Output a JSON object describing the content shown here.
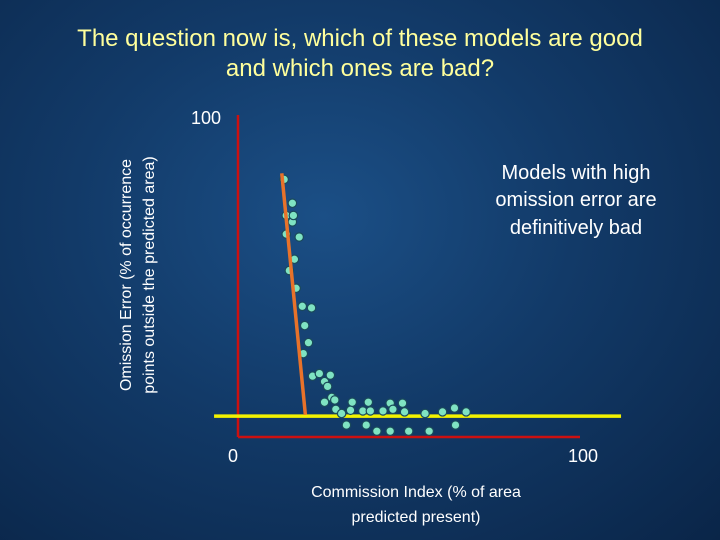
{
  "title_line1": "The question now is, which of these models are good",
  "title_line2": "and which ones are bad?",
  "annotation": [
    "Models with high",
    "omission error are",
    "definitively bad"
  ],
  "colors": {
    "title": "#ffff9c",
    "axes": "#cc1010",
    "points": "#7fe3c2",
    "point_outline": "#1a4a5a",
    "threshold": "#f2f200",
    "fit_line": "#e8722a"
  },
  "chart_data": {
    "type": "scatter",
    "title": "The question now is, which of these models are good and which ones are bad?",
    "xlabel": "Commission Index (% of area predicted present)",
    "ylabel": "Omission Error (% of occurrence points outside the predicted area)",
    "xlim": [
      0,
      100
    ],
    "ylim": [
      0,
      100
    ],
    "x_ticks": [
      "0",
      "100"
    ],
    "y_ticks": [
      "100"
    ],
    "grid": false,
    "threshold_line": {
      "y": 6.5,
      "x_range": [
        -7,
        112
      ]
    },
    "trend_line": {
      "points": [
        [
          12.8,
          81.9
        ],
        [
          19.7,
          6.9
        ]
      ]
    },
    "points": [
      [
        13.5,
        80
      ],
      [
        14.1,
        68.8
      ],
      [
        15.9,
        66.8
      ],
      [
        16.2,
        68.8
      ],
      [
        15.9,
        72.6
      ],
      [
        14.1,
        63
      ],
      [
        17.9,
        62.1
      ],
      [
        16.5,
        55.2
      ],
      [
        15,
        51.7
      ],
      [
        17,
        46.2
      ],
      [
        18.8,
        40.6
      ],
      [
        19.5,
        34.6
      ],
      [
        21.5,
        40.1
      ],
      [
        20.6,
        29.3
      ],
      [
        19.1,
        25.9
      ],
      [
        21.8,
        18.9
      ],
      [
        23.8,
        19.7
      ],
      [
        25.3,
        17.2
      ],
      [
        26.2,
        15.7
      ],
      [
        27,
        19.2
      ],
      [
        27.4,
        12.3
      ],
      [
        28.3,
        11.5
      ],
      [
        25.3,
        10.8
      ],
      [
        28.6,
        8.6
      ],
      [
        30.3,
        7.3
      ],
      [
        31.7,
        3.7
      ],
      [
        32.9,
        8.3
      ],
      [
        33.4,
        10.8
      ],
      [
        36.5,
        8.1
      ],
      [
        37.5,
        3.7
      ],
      [
        38.7,
        8.1
      ],
      [
        38.1,
        10.8
      ],
      [
        40.6,
        1.8
      ],
      [
        42.4,
        8.1
      ],
      [
        44.5,
        10.5
      ],
      [
        44.5,
        1.8
      ],
      [
        45.3,
        8.6
      ],
      [
        48.1,
        10.5
      ],
      [
        49.9,
        1.8
      ],
      [
        48.7,
        7.8
      ],
      [
        54.7,
        7.3
      ],
      [
        55.9,
        1.8
      ],
      [
        59.8,
        7.8
      ],
      [
        63.3,
        9.0
      ],
      [
        63.6,
        3.7
      ],
      [
        66.7,
        7.8
      ]
    ]
  }
}
